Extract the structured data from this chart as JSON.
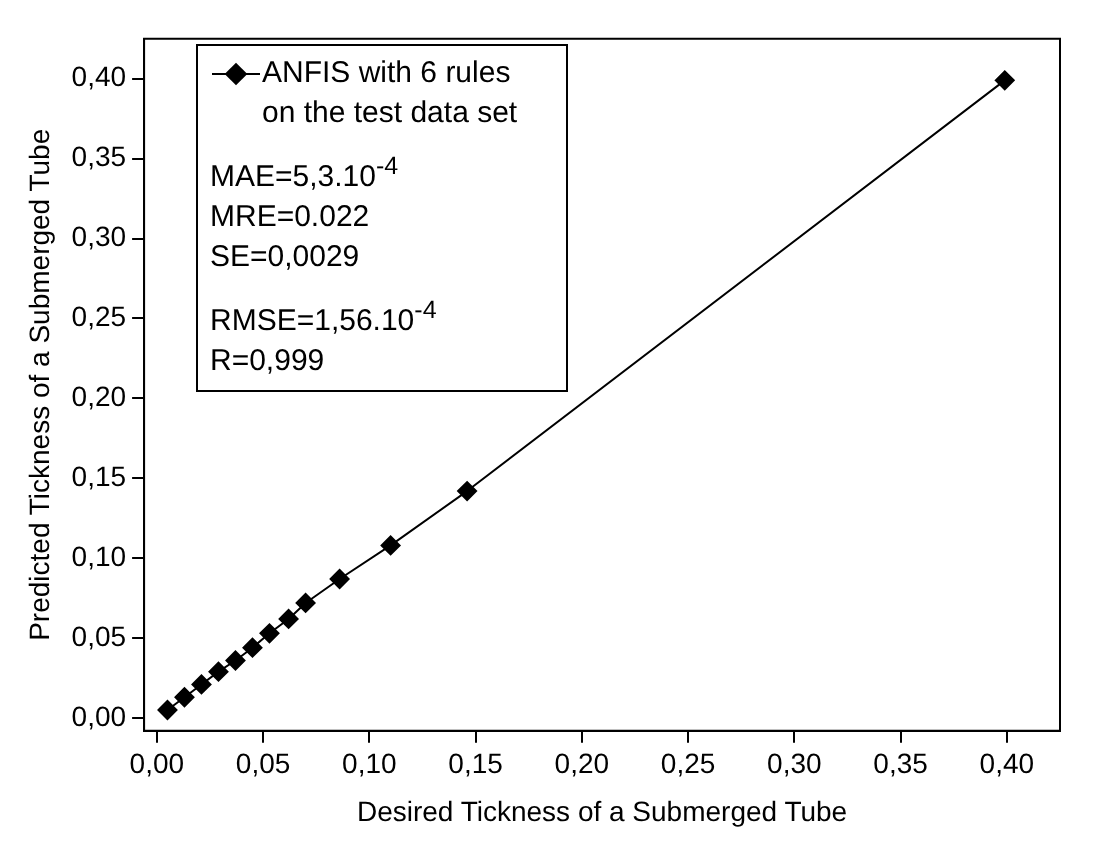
{
  "chart_data": {
    "type": "line",
    "xlabel": "Desired Tickness of a Submerged Tube",
    "ylabel": "Predicted Tickness of a Submerged Tube",
    "x": [
      0.005,
      0.013,
      0.021,
      0.029,
      0.037,
      0.045,
      0.053,
      0.062,
      0.07,
      0.086,
      0.11,
      0.146,
      0.399
    ],
    "series": [
      {
        "name": "ANFIS with 6 rules on the test data set",
        "color": "#000000",
        "values": [
          0.005,
          0.013,
          0.021,
          0.029,
          0.036,
          0.044,
          0.053,
          0.062,
          0.072,
          0.087,
          0.108,
          0.142,
          0.399
        ]
      }
    ],
    "xlim": [
      -0.006,
      0.425
    ],
    "ylim": [
      -0.008,
      0.425
    ],
    "xticks": [
      {
        "value": 0,
        "label": "0,00"
      },
      {
        "value": 0.05,
        "label": "0,05"
      },
      {
        "value": 0.1,
        "label": "0,10"
      },
      {
        "value": 0.15,
        "label": "0,15"
      },
      {
        "value": 0.2,
        "label": "0,20"
      },
      {
        "value": 0.25,
        "label": "0,25"
      },
      {
        "value": 0.3,
        "label": "0,30"
      },
      {
        "value": 0.35,
        "label": "0,35"
      },
      {
        "value": 0.4,
        "label": "0,40"
      }
    ],
    "yticks": [
      {
        "value": 0,
        "label": "0,00"
      },
      {
        "value": 0.05,
        "label": "0,05"
      },
      {
        "value": 0.1,
        "label": "0,10"
      },
      {
        "value": 0.15,
        "label": "0,15"
      },
      {
        "value": 0.2,
        "label": "0,20"
      },
      {
        "value": 0.25,
        "label": "0,25"
      },
      {
        "value": 0.3,
        "label": "0,30"
      },
      {
        "value": 0.35,
        "label": "0,35"
      },
      {
        "value": 0.4,
        "label": "0,40"
      }
    ],
    "annotations": [
      "MAE=5,3.10$^{-4}$",
      "MRE=0.022",
      "SE=0,0029",
      "RMSE=1,56.10$^{-4}$",
      "R=0,999"
    ],
    "marker": "diamond",
    "line_style": "solid",
    "grid": false,
    "legend": "top left"
  }
}
